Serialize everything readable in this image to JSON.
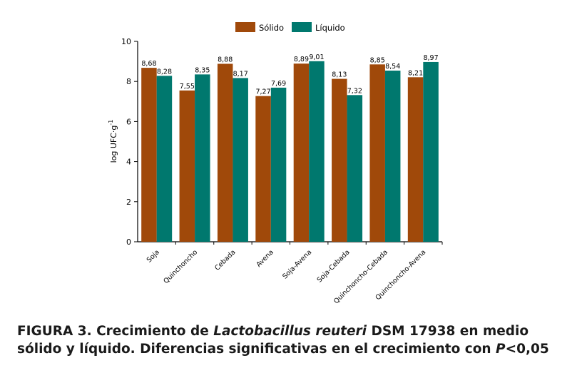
{
  "chart_data": {
    "type": "bar",
    "categories": [
      "Soja",
      "Quinchoncho",
      "Cebada",
      "Avena",
      "Soja-Avena",
      "Soja-Cebada",
      "Quinchoncho-Cebada",
      "Quinchoncho-Avena"
    ],
    "series": [
      {
        "name": "Sólido",
        "color": "#A0490A",
        "values": [
          8.68,
          7.55,
          8.88,
          7.27,
          8.89,
          8.13,
          8.85,
          8.21
        ],
        "labels": [
          "8,68",
          "7,55",
          "8,88",
          "7,27",
          "8,89",
          "8,13",
          "8,85",
          "8,21"
        ]
      },
      {
        "name": "Líquido",
        "color": "#00786E",
        "values": [
          8.28,
          8.35,
          8.17,
          7.69,
          9.01,
          7.32,
          8.54,
          8.97
        ],
        "labels": [
          "8,28",
          "8,35",
          "8,17",
          "7,69",
          "9,01",
          "7,32",
          "8,54",
          "8,97"
        ]
      }
    ],
    "ylabel_main": "log UFC·g",
    "ylabel_sup": "-1",
    "ylim": [
      0,
      10
    ],
    "yticks": [
      0,
      2,
      4,
      6,
      8,
      10
    ],
    "legend_position": "top-center",
    "grid": false
  },
  "caption": {
    "prefix": "FIGURA 3. Crecimiento de ",
    "species": "Lactobacillus reuteri",
    "middle": " DSM 17938 en medio sólido y líquido. Diferencias significativas en el crecimiento con ",
    "p_symbol": "P",
    "threshold": "<0,05"
  }
}
